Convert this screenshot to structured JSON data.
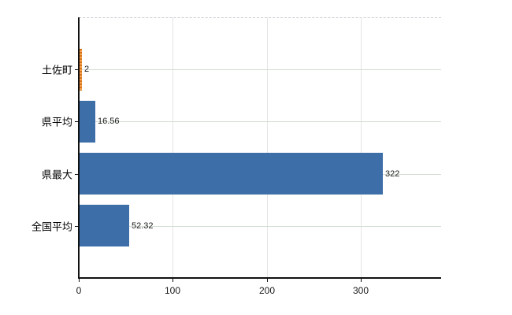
{
  "chart_data": {
    "type": "bar",
    "orientation": "horizontal",
    "title": "",
    "xlabel": "",
    "ylabel": "",
    "categories": [
      "土佐町",
      "県平均",
      "県最大",
      "全国平均"
    ],
    "values": [
      2,
      16.56,
      322,
      52.32
    ],
    "value_labels": [
      "2",
      "16.56",
      "322",
      "52.32"
    ],
    "bar_color_keys": [
      "orange",
      "blue",
      "blue",
      "blue"
    ],
    "xticks": [
      0,
      100,
      200,
      300
    ],
    "xtick_labels": [
      "0",
      "100",
      "200",
      "300"
    ],
    "xlim": [
      0,
      385
    ],
    "grid": "on",
    "legend": "none"
  },
  "colors": {
    "bar_blue": "#3d6ea8",
    "bar_orange": "#ef8a2c",
    "axis": "#111111",
    "h_gridline": "#d2ddd2",
    "v_gridline": "#e4e4e6",
    "top_border_dashed": "#c9c9d1",
    "background": "#ffffff",
    "text": "#000000"
  }
}
